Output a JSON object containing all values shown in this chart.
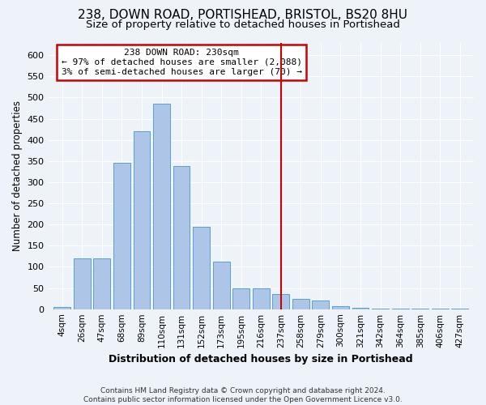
{
  "title1": "238, DOWN ROAD, PORTISHEAD, BRISTOL, BS20 8HU",
  "title2": "Size of property relative to detached houses in Portishead",
  "xlabel": "Distribution of detached houses by size in Portishead",
  "ylabel": "Number of detached properties",
  "footnote": "Contains HM Land Registry data © Crown copyright and database right 2024.\nContains public sector information licensed under the Open Government Licence v3.0.",
  "bar_labels": [
    "4sqm",
    "26sqm",
    "47sqm",
    "68sqm",
    "89sqm",
    "110sqm",
    "131sqm",
    "152sqm",
    "173sqm",
    "195sqm",
    "216sqm",
    "237sqm",
    "258sqm",
    "279sqm",
    "300sqm",
    "321sqm",
    "342sqm",
    "364sqm",
    "385sqm",
    "406sqm",
    "427sqm"
  ],
  "bar_heights": [
    5,
    120,
    120,
    345,
    420,
    485,
    338,
    195,
    112,
    50,
    50,
    35,
    25,
    20,
    8,
    3,
    1,
    1,
    1,
    1,
    1
  ],
  "bar_color": "#adc6e8",
  "bar_edge_color": "#5a9fd4",
  "vline_x_index": 11,
  "vline_color": "#cc0000",
  "annotation_line1": "238 DOWN ROAD: 230sqm",
  "annotation_line2": "← 97% of detached houses are smaller (2,088)",
  "annotation_line3": "3% of semi-detached houses are larger (70) →",
  "annotation_box_color": "#cc0000",
  "ylim": [
    0,
    630
  ],
  "yticks": [
    0,
    50,
    100,
    150,
    200,
    250,
    300,
    350,
    400,
    450,
    500,
    550,
    600
  ],
  "bg_color": "#eef2f9",
  "grid_color": "#ffffff",
  "title1_fontsize": 11,
  "title2_fontsize": 9.5,
  "xlabel_fontsize": 9,
  "ylabel_fontsize": 8.5
}
